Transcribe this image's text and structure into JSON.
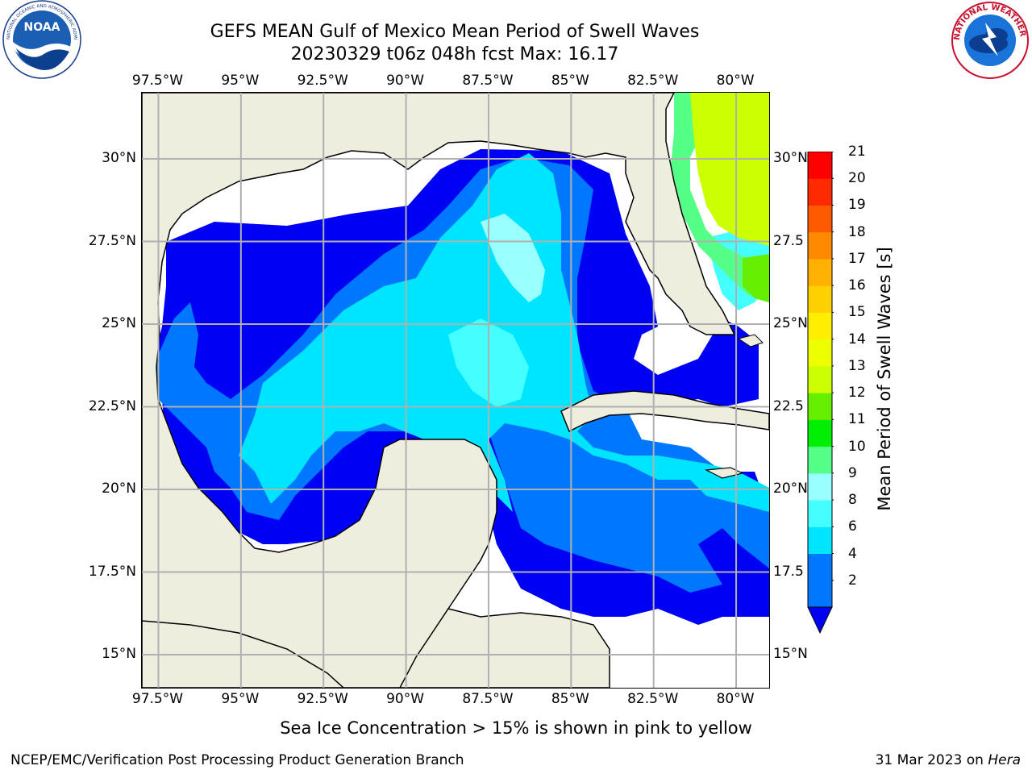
{
  "header": {
    "title_line1": "GEFS MEAN Gulf of Mexico Mean Period of Swell Waves",
    "title_line2": "20230329 t06z 048h fcst   Max: 16.17"
  },
  "logos": {
    "left": {
      "icon": "noaa-logo",
      "text": "NOAA",
      "ring_text": "NATIONAL OCEANIC AND ATMOSPHERIC ADMINISTRATION · U.S. DEPARTMENT OF COMMERCE"
    },
    "right": {
      "icon": "nws-logo",
      "ring_text": "NATIONAL WEATHER SERVICE"
    }
  },
  "map": {
    "lon_ticks": [
      "97.5°W",
      "95°W",
      "92.5°W",
      "90°W",
      "87.5°W",
      "85°W",
      "82.5°W",
      "80°W"
    ],
    "lat_ticks_left": [
      "30°N",
      "27.5°N",
      "25°N",
      "22.5°N",
      "20°N",
      "17.5°N",
      "15°N"
    ],
    "lat_ticks_right": [
      "30°N",
      "27.5",
      "25°N",
      "22.5",
      "20°N",
      "17.5",
      "15°N"
    ],
    "lon_range": [
      -98,
      -79
    ],
    "lat_range": [
      14,
      32
    ],
    "land_color": "#efedde",
    "no_data_color": "#ffffff",
    "grid": true
  },
  "colorbar": {
    "title": "Mean Period of Swell Waves [s]",
    "ticks": [
      "21",
      "20",
      "19",
      "18",
      "17",
      "16",
      "15",
      "14",
      "13",
      "12",
      "11",
      "10",
      "9",
      "8",
      "6",
      "4",
      "2"
    ],
    "levels": [
      2,
      4,
      6,
      8,
      9,
      10,
      11,
      12,
      13,
      14,
      15,
      16,
      17,
      18,
      19,
      20,
      21
    ],
    "colors": [
      "#0000f5",
      "#0077ff",
      "#00e5ff",
      "#44ffff",
      "#99ffff",
      "#55ff88",
      "#00ee00",
      "#66ee00",
      "#ccff00",
      "#eeff00",
      "#ffee00",
      "#ffd000",
      "#ffb000",
      "#ff8a00",
      "#ff5a00",
      "#ff2a00",
      "#ff0000"
    ],
    "extend": "min"
  },
  "subtitle": "Sea Ice Concentration > 15% is shown in pink to yellow",
  "footer": {
    "left": "NCEP/EMC/Verification Post Processing Product Generation Branch",
    "right_date": "31 Mar 2023 on",
    "right_host": "Hera"
  }
}
